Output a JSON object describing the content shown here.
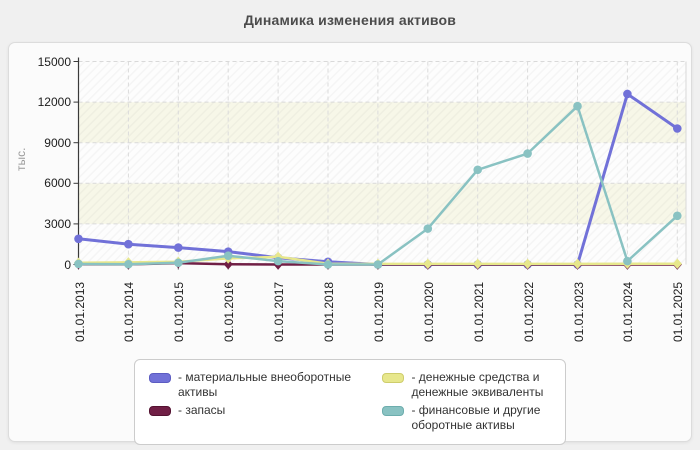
{
  "page": {
    "title": "Динамика изменения активов"
  },
  "chart_data": {
    "type": "line",
    "title": "Динамика изменения активов",
    "xlabel": "",
    "ylabel": "тыс.",
    "ylim": [
      0,
      15000
    ],
    "grid": true,
    "legend_position": "bottom",
    "categories": [
      "01.01.2013",
      "01.01.2014",
      "01.01.2015",
      "01.01.2016",
      "01.01.2017",
      "01.01.2018",
      "01.01.2019",
      "01.01.2020",
      "01.01.2021",
      "01.01.2022",
      "01.01.2023",
      "01.01.2024",
      "01.01.2025"
    ],
    "y_ticks": [
      0,
      3000,
      6000,
      9000,
      12000,
      15000
    ],
    "series": [
      {
        "name": "материальные внеоборотные активы",
        "color": "#7171d8",
        "marker": "circle",
        "line_width": 3,
        "values": [
          1900,
          1500,
          1250,
          950,
          500,
          200,
          0,
          0,
          0,
          0,
          0,
          12600,
          10050
        ]
      },
      {
        "name": "запасы",
        "color": "#701f45",
        "marker": "diamond",
        "line_width": 2.5,
        "values": [
          20,
          10,
          100,
          20,
          0,
          0,
          0,
          0,
          0,
          0,
          0,
          0,
          0
        ]
      },
      {
        "name": "денежные средства и денежные эквиваленты",
        "color": "#e7e78c",
        "marker": "diamond",
        "line_width": 2.5,
        "values": [
          130,
          160,
          200,
          450,
          570,
          60,
          50,
          50,
          50,
          50,
          50,
          60,
          60
        ]
      },
      {
        "name": "финансовые и другие оборотные активы",
        "color": "#89c2c2",
        "marker": "circle",
        "line_width": 2.5,
        "values": [
          40,
          20,
          130,
          650,
          250,
          0,
          0,
          2650,
          7000,
          8200,
          11700,
          250,
          3600
        ]
      }
    ]
  },
  "legend": {
    "items": [
      {
        "label": "- материальные внеоборотные активы",
        "color": "#7171d8",
        "border": "#5c5cc2"
      },
      {
        "label": "- запасы",
        "color": "#701f45",
        "border": "#541231"
      },
      {
        "label": "- денежные средства и денежные эквиваленты",
        "color": "#e7e78c",
        "border": "#cecd6c"
      },
      {
        "label": "- финансовые и другие оборотные активы",
        "color": "#89c2c2",
        "border": "#6dadad"
      }
    ]
  }
}
